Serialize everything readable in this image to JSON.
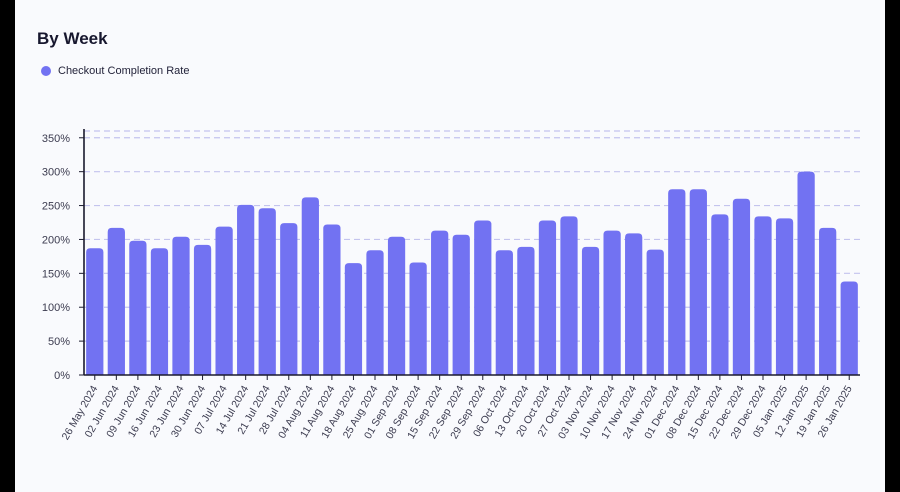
{
  "title": "By Week",
  "colors": {
    "bar": "#7272f2",
    "grid": "#c4c4ee",
    "axis": "#1a1a2e"
  },
  "chart_data": {
    "type": "bar",
    "categories": [
      "26 May 2024",
      "02 Jun 2024",
      "09 Jun 2024",
      "16 Jun 2024",
      "23 Jun 2024",
      "30 Jun 2024",
      "07 Jul 2024",
      "14 Jul 2024",
      "21 Jul 2024",
      "28 Jul 2024",
      "04 Aug 2024",
      "11 Aug 2024",
      "18 Aug 2024",
      "25 Aug 2024",
      "01 Sep 2024",
      "08 Sep 2024",
      "15 Sep 2024",
      "22 Sep 2024",
      "29 Sep 2024",
      "06 Oct 2024",
      "13 Oct 2024",
      "20 Oct 2024",
      "27 Oct 2024",
      "03 Nov 2024",
      "10 Nov 2024",
      "17 Nov 2024",
      "24 Nov 2024",
      "01 Dec 2024",
      "08 Dec 2024",
      "15 Dec 2024",
      "22 Dec 2024",
      "29 Dec 2024",
      "05 Jan 2025",
      "12 Jan 2025",
      "19 Jan 2025",
      "26 Jan 2025"
    ],
    "series": [
      {
        "name": "Checkout Completion Rate",
        "values": [
          187,
          217,
          198,
          187,
          204,
          192,
          219,
          251,
          246,
          224,
          262,
          222,
          165,
          184,
          204,
          166,
          213,
          207,
          228,
          184,
          189,
          228,
          234,
          189,
          213,
          209,
          185,
          274,
          274,
          237,
          260,
          234,
          231,
          300,
          217,
          138
        ]
      }
    ],
    "y_ticks": [
      "0%",
      "50%",
      "100%",
      "150%",
      "200%",
      "250%",
      "300%",
      "350%"
    ],
    "ylim": [
      0,
      360
    ],
    "grid": true,
    "legend_position": "top-left"
  }
}
